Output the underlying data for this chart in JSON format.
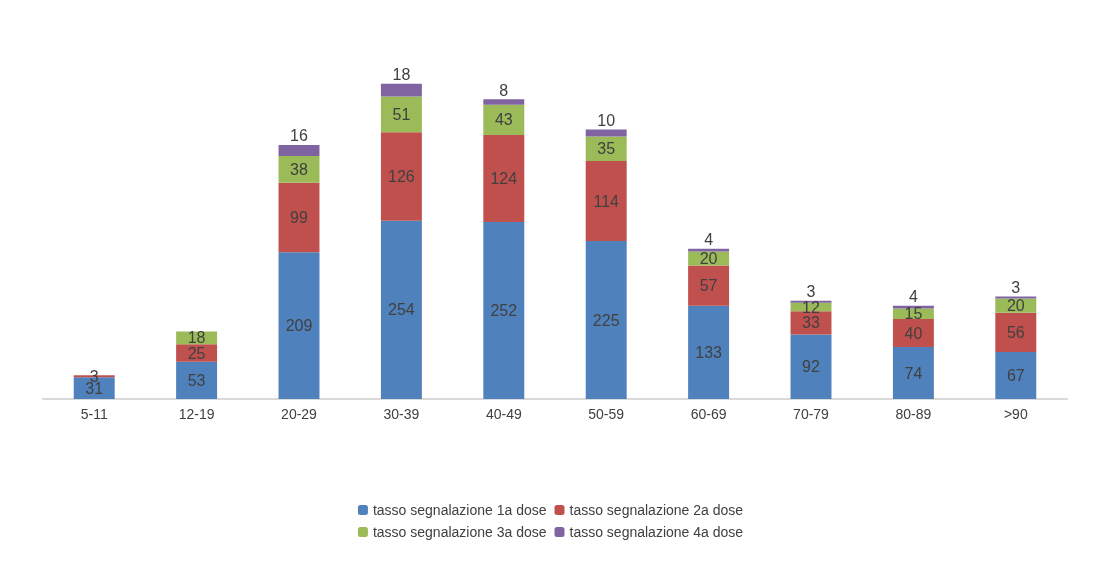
{
  "chart_data": {
    "type": "bar",
    "stacked": true,
    "data_labels": true,
    "legend": "bottom",
    "categories": [
      "5-11",
      "12-19",
      "20-29",
      "30-39",
      "40-49",
      "50-59",
      "60-69",
      "70-79",
      "80-89",
      ">90"
    ],
    "series": [
      {
        "name": "tasso segnalazione 1a dose",
        "color": "#4f81bd",
        "values": [
          31,
          53,
          209,
          254,
          252,
          225,
          133,
          92,
          74,
          67
        ]
      },
      {
        "name": "tasso segnalazione 2a dose",
        "color": "#c0504d",
        "values": [
          3,
          25,
          99,
          126,
          124,
          114,
          57,
          33,
          40,
          56
        ]
      },
      {
        "name": "tasso segnalazione 3a dose",
        "color": "#9bbb59",
        "values": [
          null,
          18,
          38,
          51,
          43,
          35,
          20,
          12,
          15,
          20
        ]
      },
      {
        "name": "tasso segnalazione 4a dose",
        "color": "#8064a2",
        "values": [
          null,
          null,
          16,
          18,
          8,
          10,
          4,
          3,
          4,
          3
        ]
      }
    ]
  }
}
